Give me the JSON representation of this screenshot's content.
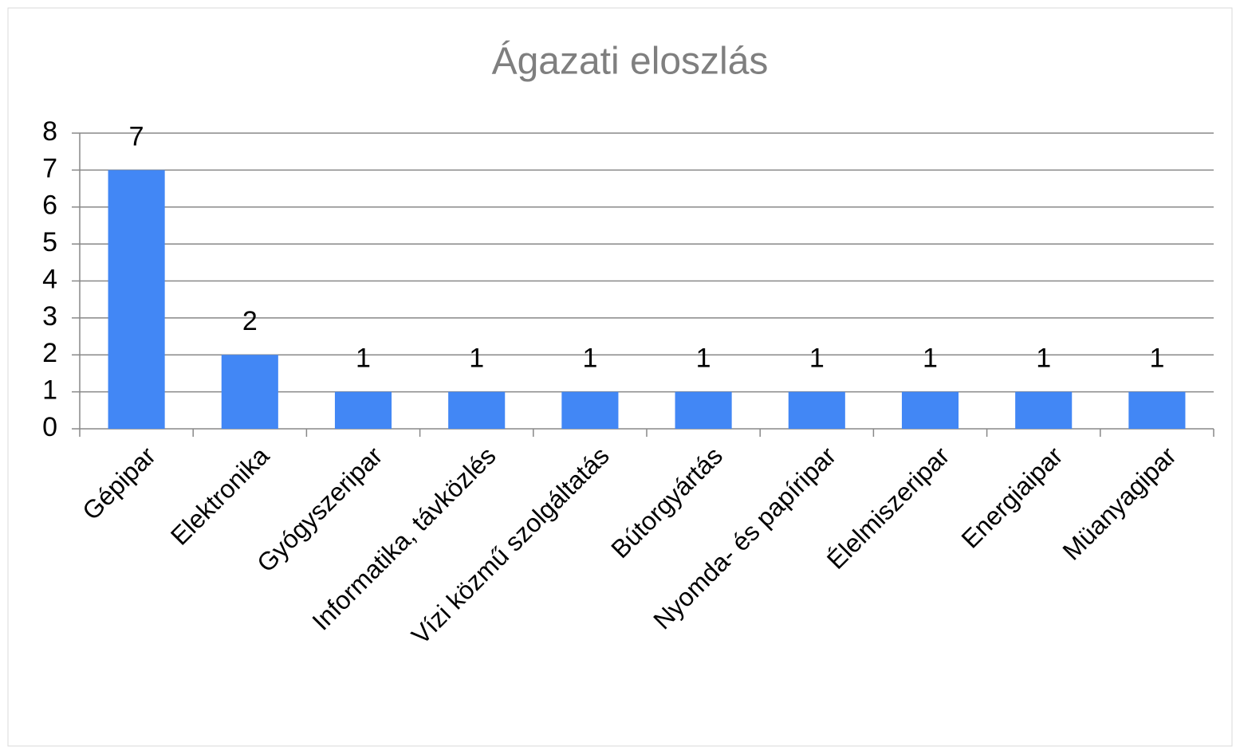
{
  "chart_data": {
    "type": "bar",
    "title": "Ágazati eloszlás",
    "categories": [
      "Gépipar",
      "Elektronika",
      "Gyógyszeripar",
      "Informatika, távközlés",
      "Vízi közmű szolgáltatás",
      "Bútorgyártás",
      "Nyomda- és papíripar",
      "Élelmiszeripar",
      "Energiaipar",
      "Müanyagipar"
    ],
    "values": [
      7,
      2,
      1,
      1,
      1,
      1,
      1,
      1,
      1,
      1
    ],
    "color": "#4287f5",
    "ylim": [
      0,
      8
    ],
    "yticks": [
      0,
      1,
      2,
      3,
      4,
      5,
      6,
      7,
      8
    ],
    "grid": true
  }
}
